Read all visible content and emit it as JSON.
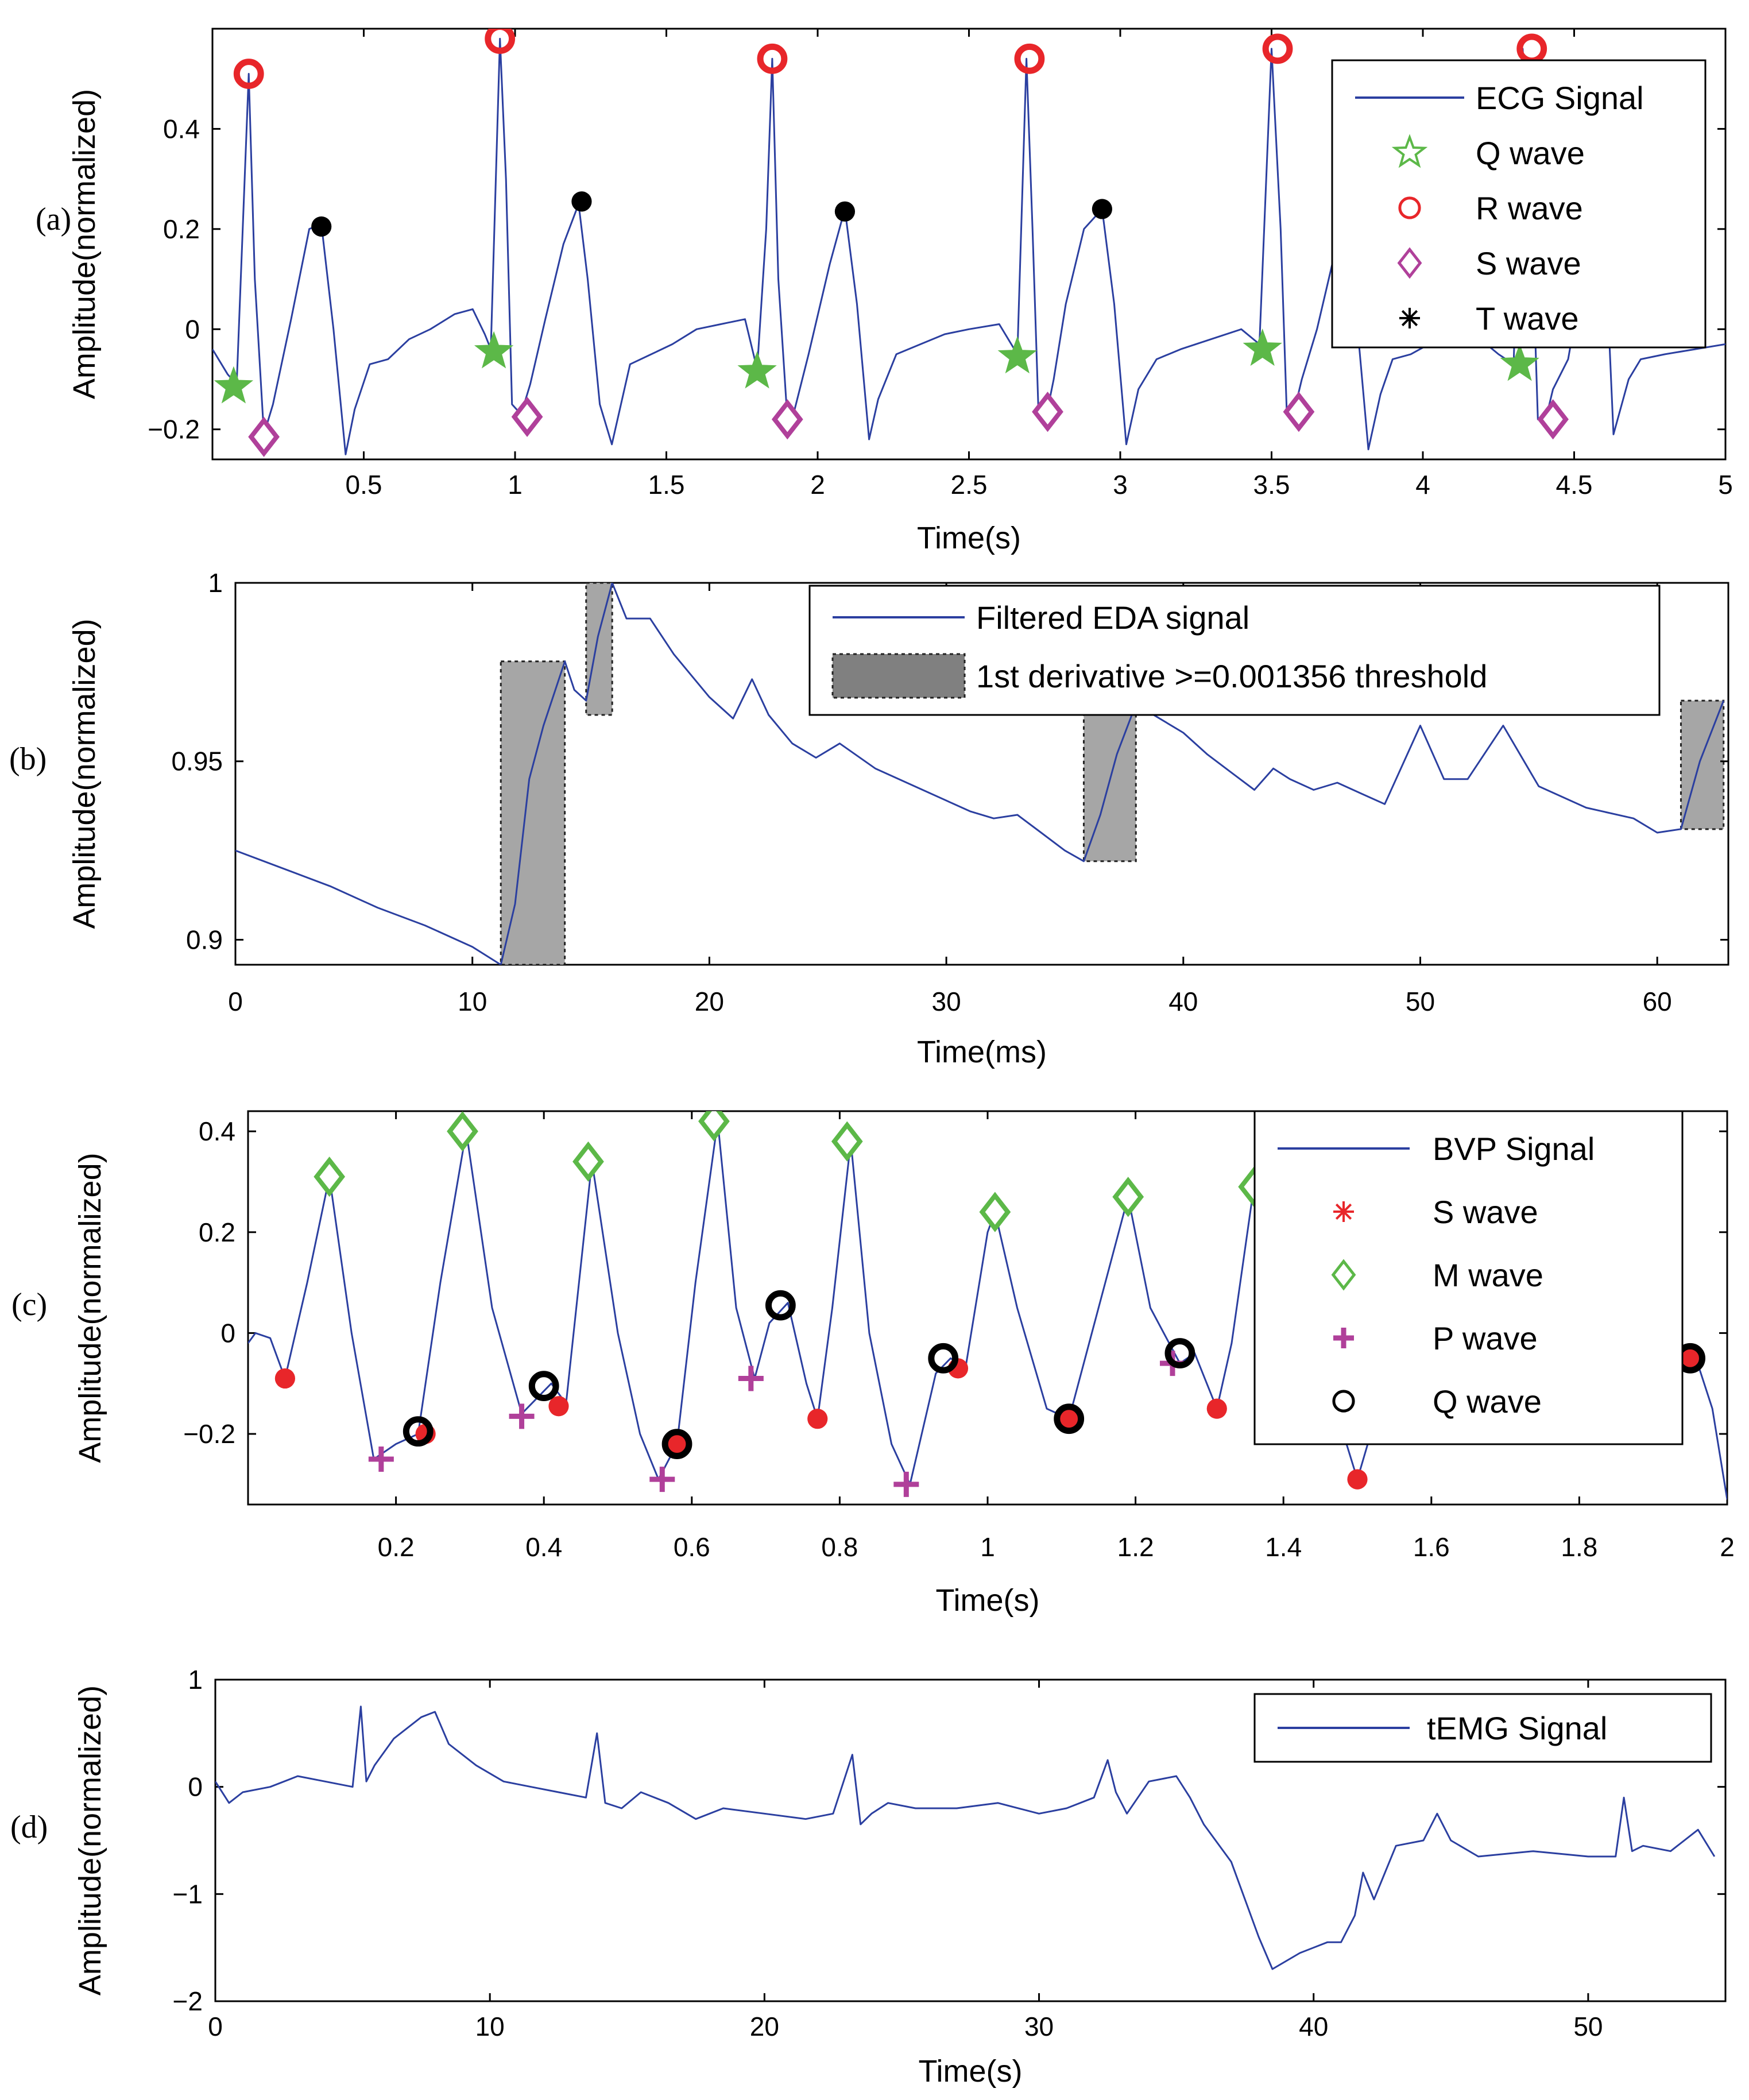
{
  "chart_data": [
    {
      "type": "line",
      "panel_label": "(a)",
      "xlabel": "Time(s)",
      "ylabel": "Amplitude(normalized)",
      "xlim": [
        0,
        5
      ],
      "ylim": [
        -0.26,
        0.6
      ],
      "xticks": [
        0.5,
        1,
        1.5,
        2,
        2.5,
        3,
        3.5,
        4,
        4.5,
        5
      ],
      "xtick_labels": [
        "0.5",
        "1",
        "1.5",
        "2",
        "2.5",
        "3",
        "3.5",
        "4",
        "4.5",
        "5"
      ],
      "yticks": [
        -0.2,
        0,
        0.2,
        0.4
      ],
      "ytick_labels": [
        "−0.2",
        "0",
        "0.2",
        "0.4"
      ],
      "legend_position": "top-right",
      "series": [
        {
          "name": "ECG Signal",
          "kind": "line",
          "color": "#2b3fa0",
          "x": [
            0,
            0.05,
            0.08,
            0.12,
            0.14,
            0.17,
            0.2,
            0.26,
            0.32,
            0.36,
            0.4,
            0.44,
            0.47,
            0.52,
            0.58,
            0.65,
            0.72,
            0.8,
            0.86,
            0.9,
            0.92,
            0.95,
            0.97,
            0.99,
            1.02,
            1.05,
            1.1,
            1.16,
            1.21,
            1.24,
            1.28,
            1.32,
            1.38,
            1.45,
            1.52,
            1.6,
            1.68,
            1.76,
            1.8,
            1.83,
            1.85,
            1.87,
            1.9,
            1.92,
            1.97,
            2.04,
            2.09,
            2.13,
            2.17,
            2.2,
            2.26,
            2.34,
            2.42,
            2.5,
            2.6,
            2.66,
            2.69,
            2.71,
            2.73,
            2.76,
            2.78,
            2.82,
            2.88,
            2.94,
            2.98,
            3.02,
            3.06,
            3.12,
            3.2,
            3.3,
            3.4,
            3.46,
            3.5,
            3.53,
            3.55,
            3.58,
            3.6,
            3.65,
            3.72,
            3.78,
            3.82,
            3.86,
            3.9,
            3.96,
            4.05,
            4.15,
            4.25,
            4.3,
            4.33,
            4.36,
            4.38,
            4.41,
            4.43,
            4.48,
            4.55,
            4.6,
            4.63,
            4.68,
            4.72,
            4.8,
            4.9,
            5
          ],
          "y": [
            -0.04,
            -0.09,
            -0.11,
            0.51,
            0.1,
            -0.21,
            -0.15,
            0.02,
            0.2,
            0.21,
            0.0,
            -0.25,
            -0.16,
            -0.07,
            -0.06,
            -0.02,
            0.0,
            0.03,
            0.04,
            -0.01,
            -0.04,
            0.58,
            0.3,
            -0.15,
            -0.17,
            -0.11,
            0.02,
            0.17,
            0.25,
            0.1,
            -0.15,
            -0.23,
            -0.07,
            -0.05,
            -0.03,
            0.0,
            0.01,
            0.02,
            -0.08,
            0.2,
            0.54,
            0.1,
            -0.18,
            -0.17,
            -0.05,
            0.13,
            0.24,
            0.05,
            -0.22,
            -0.14,
            -0.05,
            -0.03,
            -0.01,
            0.0,
            0.01,
            -0.05,
            0.54,
            0.2,
            -0.17,
            -0.16,
            -0.1,
            0.05,
            0.2,
            0.24,
            0.05,
            -0.23,
            -0.12,
            -0.06,
            -0.04,
            -0.02,
            0.0,
            -0.03,
            0.56,
            0.2,
            -0.16,
            -0.15,
            -0.1,
            0.0,
            0.18,
            0.03,
            -0.24,
            -0.13,
            -0.06,
            -0.05,
            -0.02,
            0.0,
            -0.05,
            -0.07,
            0.56,
            0.2,
            -0.18,
            -0.17,
            -0.12,
            -0.06,
            0.18,
            0.2,
            -0.21,
            -0.1,
            -0.06,
            -0.05,
            -0.04,
            -0.03
          ]
        },
        {
          "name": "Q wave",
          "kind": "markers",
          "marker": "star",
          "color": "#5cb848",
          "x": [
            0.07,
            0.93,
            1.8,
            2.66,
            3.47,
            4.32
          ],
          "y": [
            -0.115,
            -0.045,
            -0.085,
            -0.055,
            -0.04,
            -0.07
          ]
        },
        {
          "name": "R wave",
          "kind": "markers",
          "marker": "circle",
          "color": "#e8262a",
          "x": [
            0.12,
            0.95,
            1.85,
            2.7,
            3.52,
            4.36
          ],
          "y": [
            0.51,
            0.58,
            0.54,
            0.54,
            0.56,
            0.56
          ]
        },
        {
          "name": "S wave",
          "kind": "markers",
          "marker": "diamond",
          "color": "#b0409a",
          "x": [
            0.17,
            1.04,
            1.9,
            2.76,
            3.59,
            4.43
          ],
          "y": [
            -0.215,
            -0.175,
            -0.18,
            -0.165,
            -0.165,
            -0.18
          ]
        },
        {
          "name": "T wave",
          "kind": "markers",
          "marker": "dot",
          "color": "#000000",
          "x": [
            0.36,
            1.22,
            2.09,
            2.94
          ],
          "y": [
            0.205,
            0.255,
            0.235,
            0.24
          ]
        }
      ],
      "legend": [
        {
          "label": "ECG Signal",
          "symbol": "line",
          "color": "#2b3fa0"
        },
        {
          "label": "Q wave",
          "symbol": "star-open",
          "color": "#5cb848"
        },
        {
          "label": "R wave",
          "symbol": "circle-open",
          "color": "#e8262a"
        },
        {
          "label": "S wave",
          "symbol": "diamond-open",
          "color": "#b0409a"
        },
        {
          "label": "T wave",
          "symbol": "asterisk",
          "color": "#000000"
        }
      ]
    },
    {
      "type": "line",
      "panel_label": "(b)",
      "xlabel": "Time(ms)",
      "ylabel": "Amplitude(normalized)",
      "xlim": [
        0,
        63
      ],
      "ylim": [
        0.893,
        1.0
      ],
      "xticks": [
        0,
        10,
        20,
        30,
        40,
        50,
        60
      ],
      "xtick_labels": [
        "0",
        "10",
        "20",
        "30",
        "40",
        "50",
        "60"
      ],
      "yticks": [
        0.9,
        0.95,
        1
      ],
      "ytick_labels": [
        "0.9",
        "0.95",
        "1"
      ],
      "legend_position": "top-right",
      "regions": [
        {
          "x0": 11.2,
          "x1": 13.9,
          "y0": 0.893,
          "y1": 0.978
        },
        {
          "x0": 14.8,
          "x1": 15.9,
          "y0": 0.963,
          "y1": 1.0
        },
        {
          "x0": 35.8,
          "x1": 38.0,
          "y0": 0.922,
          "y1": 0.966
        },
        {
          "x0": 61.0,
          "x1": 62.8,
          "y0": 0.931,
          "y1": 0.967
        }
      ],
      "series": [
        {
          "name": "Filtered EDA signal",
          "kind": "line",
          "color": "#2b3fa0",
          "x": [
            0,
            2,
            4,
            6,
            8,
            10,
            11.2,
            11.8,
            12.4,
            13,
            13.9,
            14.3,
            14.8,
            15.3,
            15.9,
            16.5,
            17.5,
            18.5,
            20,
            21,
            21.8,
            22.5,
            23.5,
            24.5,
            25.5,
            27,
            29,
            31,
            32,
            33,
            34,
            35,
            35.8,
            36.5,
            37.2,
            38,
            39,
            40,
            41,
            42,
            43,
            43.8,
            44.5,
            45.5,
            46.5,
            47.5,
            48.5,
            50,
            51,
            52,
            53.5,
            55,
            57,
            59,
            60,
            61,
            61.8,
            62.8
          ],
          "y": [
            0.925,
            0.92,
            0.915,
            0.909,
            0.904,
            0.898,
            0.893,
            0.91,
            0.945,
            0.96,
            0.978,
            0.97,
            0.967,
            0.985,
            1.0,
            0.99,
            0.99,
            0.98,
            0.968,
            0.962,
            0.973,
            0.963,
            0.955,
            0.951,
            0.955,
            0.948,
            0.942,
            0.936,
            0.934,
            0.935,
            0.93,
            0.925,
            0.922,
            0.935,
            0.952,
            0.966,
            0.962,
            0.958,
            0.952,
            0.947,
            0.942,
            0.948,
            0.945,
            0.942,
            0.944,
            0.941,
            0.938,
            0.96,
            0.945,
            0.945,
            0.96,
            0.943,
            0.937,
            0.934,
            0.93,
            0.931,
            0.95,
            0.967
          ]
        },
        {
          "name": "1st derivative >=0.001356 threshold",
          "kind": "regions",
          "color": "#a6a6a6"
        }
      ],
      "legend": [
        {
          "label": "Filtered EDA signal",
          "symbol": "line",
          "color": "#2b3fa0"
        },
        {
          "label": "1st derivative >=0.001356 threshold",
          "symbol": "patch",
          "color": "#808080"
        }
      ]
    },
    {
      "type": "line",
      "panel_label": "(c)",
      "xlabel": "Time(s)",
      "ylabel": "Amplitude(normalized)",
      "xlim": [
        0,
        2
      ],
      "ylim": [
        -0.34,
        0.44
      ],
      "xticks": [
        0.2,
        0.4,
        0.6,
        0.8,
        1,
        1.2,
        1.4,
        1.6,
        1.8,
        2
      ],
      "xtick_labels": [
        "0.2",
        "0.4",
        "0.6",
        "0.8",
        "1",
        "1.2",
        "1.4",
        "1.6",
        "1.8",
        "2"
      ],
      "yticks": [
        -0.2,
        0,
        0.2,
        0.4
      ],
      "ytick_labels": [
        "−0.2",
        "0",
        "0.2",
        "0.4"
      ],
      "legend_position": "top-right",
      "series": [
        {
          "name": "BVP Signal",
          "kind": "line",
          "color": "#2b3fa0",
          "x": [
            0,
            0.01,
            0.03,
            0.05,
            0.08,
            0.11,
            0.14,
            0.17,
            0.2,
            0.23,
            0.26,
            0.295,
            0.33,
            0.37,
            0.41,
            0.43,
            0.465,
            0.5,
            0.53,
            0.555,
            0.58,
            0.605,
            0.635,
            0.66,
            0.685,
            0.705,
            0.73,
            0.755,
            0.77,
            0.79,
            0.815,
            0.84,
            0.87,
            0.895,
            0.93,
            0.95,
            0.97,
            1.0,
            1.01,
            1.04,
            1.08,
            1.11,
            1.15,
            1.19,
            1.22,
            1.26,
            1.28,
            1.31,
            1.33,
            1.36,
            1.38,
            1.42,
            1.46,
            1.5,
            1.54,
            1.58,
            1.62,
            1.66,
            1.7,
            1.74,
            1.78,
            1.82,
            1.86,
            1.9,
            1.94,
            1.96,
            1.98,
            2.0
          ],
          "y": [
            -0.02,
            0.0,
            -0.01,
            -0.09,
            0.1,
            0.31,
            0.0,
            -0.25,
            -0.22,
            -0.2,
            0.1,
            0.4,
            0.05,
            -0.16,
            -0.1,
            -0.14,
            0.34,
            0.0,
            -0.2,
            -0.29,
            -0.22,
            0.1,
            0.42,
            0.05,
            -0.09,
            0.02,
            0.06,
            -0.1,
            -0.17,
            0.05,
            0.38,
            0.0,
            -0.22,
            -0.3,
            -0.08,
            -0.05,
            -0.07,
            0.2,
            0.24,
            0.05,
            -0.15,
            -0.17,
            0.05,
            0.27,
            0.05,
            -0.06,
            -0.04,
            -0.15,
            -0.02,
            0.29,
            0.1,
            -0.05,
            -0.1,
            -0.29,
            -0.09,
            -0.05,
            -0.06,
            -0.05,
            -0.055,
            -0.05,
            -0.06,
            -0.05,
            -0.055,
            -0.05,
            -0.05,
            -0.06,
            -0.15,
            -0.33
          ]
        },
        {
          "name": "S wave",
          "kind": "markers",
          "marker": "dot",
          "color": "#e8262a",
          "x": [
            0.05,
            0.24,
            0.42,
            0.58,
            0.77,
            0.96,
            1.11,
            1.31,
            1.5,
            1.95
          ],
          "y": [
            -0.09,
            -0.2,
            -0.145,
            -0.22,
            -0.17,
            -0.07,
            -0.17,
            -0.15,
            -0.29,
            -0.05
          ]
        },
        {
          "name": "M wave",
          "kind": "markers",
          "marker": "diamond",
          "color": "#5cb848",
          "x": [
            0.11,
            0.29,
            0.46,
            0.63,
            0.81,
            1.01,
            1.19,
            1.36
          ],
          "y": [
            0.31,
            0.4,
            0.34,
            0.42,
            0.38,
            0.24,
            0.27,
            0.29
          ]
        },
        {
          "name": "P wave",
          "kind": "markers",
          "marker": "plus",
          "color": "#b0409a",
          "x": [
            0.18,
            0.37,
            0.56,
            0.68,
            0.89,
            1.25
          ],
          "y": [
            -0.25,
            -0.165,
            -0.29,
            -0.09,
            -0.3,
            -0.06
          ]
        },
        {
          "name": "Q wave",
          "kind": "markers",
          "marker": "circle",
          "color": "#000000",
          "x": [
            0.23,
            0.4,
            0.58,
            0.72,
            0.94,
            1.11,
            1.26,
            1.95
          ],
          "y": [
            -0.195,
            -0.105,
            -0.22,
            0.055,
            -0.05,
            -0.17,
            -0.04,
            -0.05
          ]
        }
      ],
      "legend": [
        {
          "label": "BVP Signal",
          "symbol": "line",
          "color": "#2b3fa0"
        },
        {
          "label": "S wave",
          "symbol": "asterisk",
          "color": "#e8262a"
        },
        {
          "label": "M wave",
          "symbol": "diamond-open",
          "color": "#5cb848"
        },
        {
          "label": "P wave",
          "symbol": "plus",
          "color": "#b0409a"
        },
        {
          "label": "Q wave",
          "symbol": "circle-open",
          "color": "#000000"
        }
      ]
    },
    {
      "type": "line",
      "panel_label": "(d)",
      "xlabel": "Time(s)",
      "ylabel": "Amplitude(normalized)",
      "xlim": [
        0,
        55
      ],
      "ylim": [
        -2,
        1
      ],
      "xticks": [
        0,
        10,
        20,
        30,
        40,
        50
      ],
      "xtick_labels": [
        "0",
        "10",
        "20",
        "30",
        "40",
        "50"
      ],
      "yticks": [
        -2,
        -1,
        0,
        1
      ],
      "ytick_labels": [
        "−2",
        "−1",
        "0",
        "1"
      ],
      "legend_position": "top-right",
      "series": [
        {
          "name": "tEMG Signal",
          "kind": "line",
          "color": "#2b3fa0",
          "x": [
            0,
            0.5,
            1,
            2,
            3,
            4,
            5,
            5.3,
            5.5,
            5.8,
            6.5,
            7.5,
            8,
            8.5,
            9.5,
            10.5,
            11.5,
            12.5,
            13.5,
            13.9,
            14.2,
            14.8,
            15.5,
            16.5,
            17.5,
            18.5,
            20,
            21.5,
            22.5,
            23.2,
            23.5,
            23.9,
            24.5,
            25.5,
            27,
            28.5,
            30,
            31,
            32,
            32.5,
            32.8,
            33.2,
            34,
            35,
            35.5,
            36,
            37,
            38,
            38.5,
            39.5,
            40.5,
            41,
            41.5,
            41.8,
            42.2,
            43,
            44,
            44.5,
            45,
            46,
            48,
            50,
            51,
            51.3,
            51.6,
            52,
            53,
            54,
            54.6
          ],
          "y": [
            0.05,
            -0.15,
            -0.05,
            0.0,
            0.1,
            0.05,
            0.0,
            0.75,
            0.05,
            0.2,
            0.45,
            0.65,
            0.7,
            0.4,
            0.2,
            0.05,
            0.0,
            -0.05,
            -0.1,
            0.5,
            -0.15,
            -0.2,
            -0.05,
            -0.15,
            -0.3,
            -0.2,
            -0.25,
            -0.3,
            -0.25,
            0.3,
            -0.35,
            -0.25,
            -0.15,
            -0.2,
            -0.2,
            -0.15,
            -0.25,
            -0.2,
            -0.1,
            0.25,
            -0.05,
            -0.25,
            0.05,
            0.1,
            -0.1,
            -0.35,
            -0.7,
            -1.4,
            -1.7,
            -1.55,
            -1.45,
            -1.45,
            -1.2,
            -0.8,
            -1.05,
            -0.55,
            -0.5,
            -0.25,
            -0.5,
            -0.65,
            -0.6,
            -0.65,
            -0.65,
            -0.1,
            -0.6,
            -0.55,
            -0.6,
            -0.4,
            -0.65
          ]
        }
      ],
      "legend": [
        {
          "label": "tEMG Signal",
          "symbol": "line",
          "color": "#2b3fa0"
        }
      ]
    }
  ]
}
